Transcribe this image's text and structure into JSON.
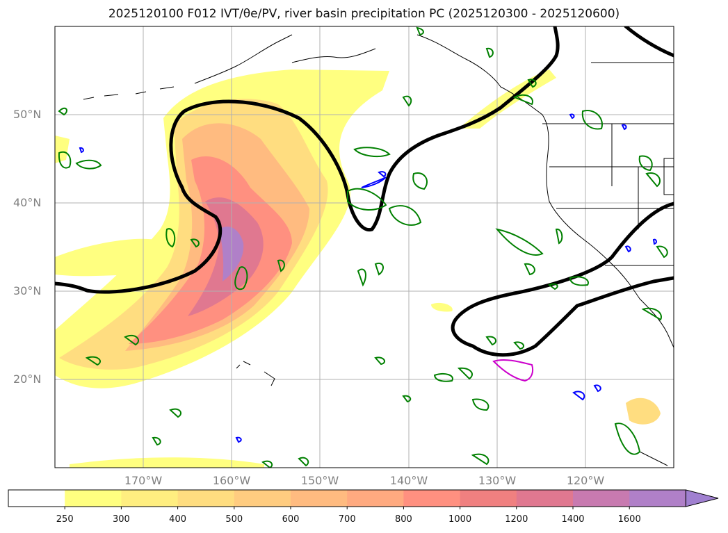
{
  "title_text": "2025120100 F012 IVT/θe/PV, river basin precipitation PC (2025120300 - 2025120600)",
  "lat_labels": [
    "50°N",
    "40°N",
    "30°N",
    "20°N"
  ],
  "lon_labels": [
    "170°W",
    "160°W",
    "150°W",
    "140°W",
    "130°W",
    "120°W"
  ],
  "colorbar": {
    "levels": [
      "250",
      "300",
      "400",
      "500",
      "600",
      "700",
      "800",
      "1000",
      "1200",
      "1400",
      "1600"
    ],
    "colors": [
      "#ffff80",
      "#ffee80",
      "#ffdd80",
      "#ffcc80",
      "#ffbb80",
      "#ffaa80",
      "#ff9080",
      "#f08080",
      "#e07890",
      "#c87ab0",
      "#b080c8",
      "#a080d0"
    ]
  },
  "colors": {
    "theta_contour": "#000000",
    "pv_contour": "#008000",
    "basin_precip": "#0000ff",
    "highlight": "#cc00cc",
    "coastline": "#000000",
    "grid": "#b0b0b0"
  }
}
